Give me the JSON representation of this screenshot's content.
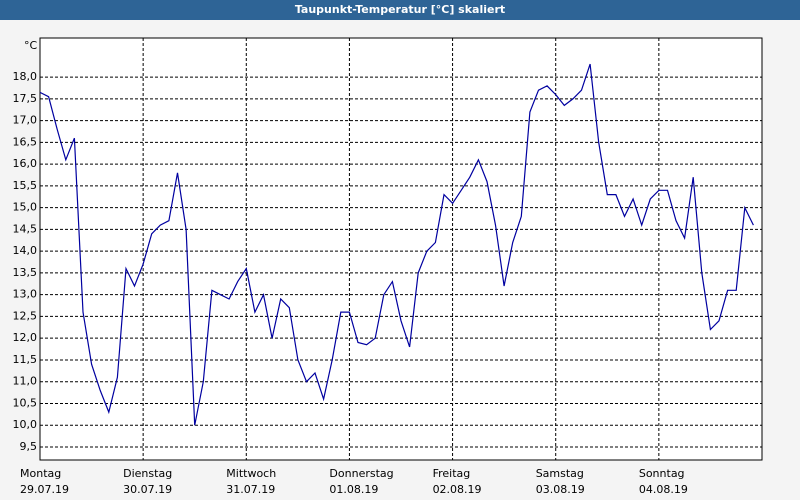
{
  "chart_data": {
    "type": "line",
    "title": "Taupunkt-Temperatur [°C] skaliert",
    "unit_label": "°C",
    "days": [
      {
        "weekday": "Montag",
        "date": "29.07.19"
      },
      {
        "weekday": "Dienstag",
        "date": "30.07.19"
      },
      {
        "weekday": "Mittwoch",
        "date": "31.07.19"
      },
      {
        "weekday": "Donnerstag",
        "date": "01.08.19"
      },
      {
        "weekday": "Freitag",
        "date": "02.08.19"
      },
      {
        "weekday": "Samstag",
        "date": "03.08.19"
      },
      {
        "weekday": "Sonntag",
        "date": "04.08.19"
      }
    ],
    "color": "#0000a0",
    "values": [
      17.65,
      17.55,
      16.8,
      16.1,
      16.6,
      12.6,
      11.4,
      10.8,
      10.3,
      11.1,
      13.6,
      13.2,
      13.7,
      14.4,
      14.6,
      14.7,
      15.8,
      14.5,
      10.0,
      11.0,
      13.1,
      13.0,
      12.9,
      13.3,
      13.6,
      12.6,
      13.0,
      12.0,
      12.9,
      12.7,
      11.5,
      11.0,
      11.2,
      10.6,
      11.5,
      12.6,
      12.6,
      11.9,
      11.85,
      12.0,
      13.0,
      13.3,
      12.4,
      11.8,
      13.5,
      14.0,
      14.2,
      15.3,
      15.1,
      15.4,
      15.7,
      16.1,
      15.6,
      14.6,
      13.2,
      14.2,
      14.8,
      17.2,
      17.7,
      17.8,
      17.6,
      17.35,
      17.5,
      17.7,
      18.3,
      16.5,
      15.3,
      15.3,
      14.8,
      15.2,
      14.6,
      15.2,
      15.4,
      15.4,
      14.7,
      14.3,
      15.7,
      13.5,
      12.2,
      12.4,
      13.1,
      13.1,
      15.0,
      14.6
    ],
    "ylim": [
      9.2,
      18.9
    ],
    "yticks": [
      {
        "value": 9.5,
        "label": "9,5"
      },
      {
        "value": 10,
        "label": "10,0"
      },
      {
        "value": 10.5,
        "label": "10,5"
      },
      {
        "value": 11,
        "label": "11,0"
      },
      {
        "value": 11.5,
        "label": "11,5"
      },
      {
        "value": 12,
        "label": "12,0"
      },
      {
        "value": 12.5,
        "label": "12,5"
      },
      {
        "value": 13,
        "label": "13,0"
      },
      {
        "value": 13.5,
        "label": "13,5"
      },
      {
        "value": 14,
        "label": "14,0"
      },
      {
        "value": 14.5,
        "label": "14,5"
      },
      {
        "value": 15,
        "label": "15,0"
      },
      {
        "value": 15.5,
        "label": "15,5"
      },
      {
        "value": 16,
        "label": "16,0"
      },
      {
        "value": 16.5,
        "label": "16,5"
      },
      {
        "value": 17,
        "label": "17,0"
      },
      {
        "value": 17.5,
        "label": "17,5"
      },
      {
        "value": 18,
        "label": "18,0"
      }
    ],
    "grid": true
  }
}
